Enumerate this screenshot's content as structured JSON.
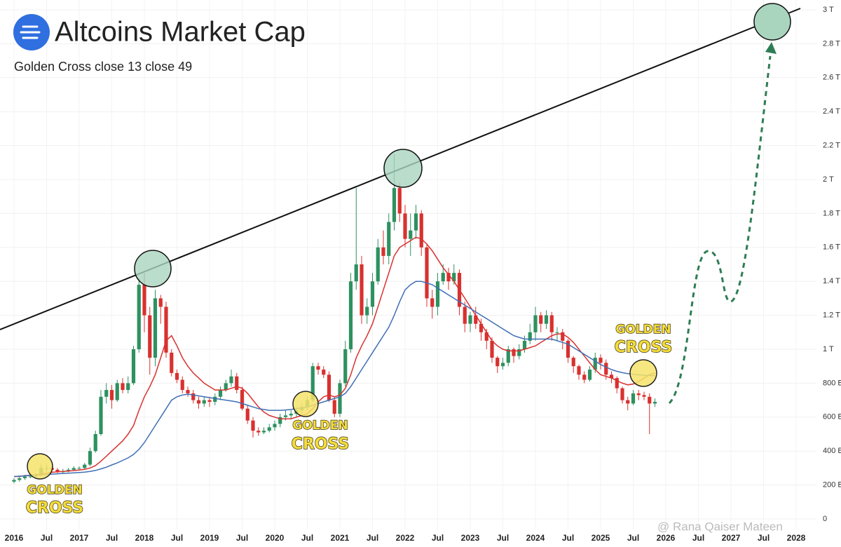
{
  "chart_data": {
    "type": "candlestick",
    "title": "Altcoins Market Cap",
    "subtitle": "Golden Cross close 13 close 49",
    "watermark": "@ Rana Qaiser Mateen",
    "annotations": [
      {
        "lines": [
          "GOLDEN",
          "CROSS"
        ]
      },
      {
        "lines": [
          "GOLDEN",
          "CROSS"
        ]
      },
      {
        "lines": [
          "GOLDEN",
          "CROSS"
        ]
      }
    ],
    "up_color": "#2e9160",
    "down_color": "#d8312f",
    "grid": true,
    "ylim": [
      0,
      3000
    ],
    "yticks": [
      0,
      {
        "value": 200,
        "label": "200 B"
      },
      {
        "value": 400,
        "label": "400 B"
      },
      {
        "value": 600,
        "label": "600 B"
      },
      {
        "value": 800,
        "label": "800 B"
      },
      {
        "value": 1000,
        "label": "1 T"
      },
      {
        "value": 1200,
        "label": "1.2 T"
      },
      {
        "value": 1400,
        "label": "1.4 T"
      },
      {
        "value": 1600,
        "label": "1.6 T"
      },
      {
        "value": 1800,
        "label": "1.8 T"
      },
      {
        "value": 2000,
        "label": "2 T"
      },
      {
        "value": 2200,
        "label": "2.2 T"
      },
      {
        "value": 2400,
        "label": "2.4 T"
      },
      {
        "value": 2600,
        "label": "2.6 T"
      },
      {
        "value": 2800,
        "label": "2.8 T"
      },
      {
        "value": 3000,
        "label": "3 T"
      }
    ],
    "categories": [
      "2016",
      null,
      null,
      null,
      null,
      null,
      "Jul",
      null,
      null,
      null,
      null,
      null,
      "2017",
      null,
      null,
      null,
      null,
      null,
      "Jul",
      null,
      null,
      null,
      null,
      null,
      "2018",
      null,
      null,
      null,
      null,
      null,
      "Jul",
      null,
      null,
      null,
      null,
      null,
      "2019",
      null,
      null,
      null,
      null,
      null,
      "Jul",
      null,
      null,
      null,
      null,
      null,
      "2020",
      null,
      null,
      null,
      null,
      null,
      "Jul",
      null,
      null,
      null,
      null,
      null,
      "2021",
      null,
      null,
      null,
      null,
      null,
      "Jul",
      null,
      null,
      null,
      null,
      null,
      "2022",
      null,
      null,
      null,
      null,
      null,
      "Jul",
      null,
      null,
      null,
      null,
      null,
      "2023",
      null,
      null,
      null,
      null,
      null,
      "Jul",
      null,
      null,
      null,
      null,
      null,
      "2024",
      null,
      null,
      null,
      null,
      null,
      "Jul",
      null,
      null,
      null,
      null,
      null,
      "2025",
      null,
      null,
      null,
      null,
      null,
      "Jul",
      null,
      null,
      null,
      null,
      null,
      "2026",
      null,
      null,
      null,
      null,
      null,
      "Jul",
      null,
      null,
      null,
      null,
      null,
      "2027",
      null,
      null,
      null,
      null,
      null,
      "Jul",
      null,
      null,
      null,
      null,
      null,
      "2028",
      null,
      null
    ],
    "open": [
      220,
      230,
      240,
      250,
      250,
      260,
      300,
      300,
      290,
      280,
      280,
      290,
      300,
      300,
      320,
      400,
      500,
      720,
      760,
      700,
      800,
      760,
      800,
      1000,
      1380,
      1200,
      950,
      1300,
      1250,
      980,
      860,
      820,
      760,
      740,
      700,
      680,
      700,
      690,
      720,
      760,
      800,
      840,
      760,
      650,
      580,
      520,
      510,
      520,
      540,
      560,
      600,
      610,
      620,
      640,
      660,
      700,
      900,
      880,
      850,
      700,
      620,
      800,
      1000,
      1400,
      1500,
      1200,
      1250,
      1400,
      1600,
      1550,
      1750,
      1950,
      1800,
      1650,
      1700,
      1800,
      1600,
      1300,
      1250,
      1400,
      1450,
      1400,
      1450,
      1250,
      1150,
      1200,
      1150,
      1100,
      1050,
      950,
      900,
      920,
      1000,
      960,
      1000,
      1050,
      1100,
      1200,
      1150,
      1200,
      1100,
      1100,
      1050,
      950,
      900,
      850,
      820,
      880,
      950,
      920,
      850,
      830,
      770,
      700,
      680,
      740,
      730,
      720,
      680,
      null,
      null,
      null,
      null,
      null,
      null,
      null,
      null,
      null,
      null,
      null,
      null,
      null,
      null,
      null,
      null,
      null,
      null,
      null,
      null,
      null,
      null,
      null,
      null,
      null,
      null,
      null,
      null
    ],
    "high": [
      240,
      250,
      260,
      265,
      270,
      320,
      320,
      310,
      300,
      295,
      300,
      310,
      310,
      330,
      420,
      520,
      760,
      800,
      790,
      820,
      830,
      840,
      1020,
      1420,
      1450,
      1250,
      1350,
      1320,
      1280,
      1000,
      880,
      840,
      780,
      760,
      720,
      720,
      720,
      740,
      780,
      820,
      880,
      860,
      780,
      670,
      600,
      540,
      540,
      560,
      580,
      620,
      640,
      640,
      660,
      680,
      720,
      920,
      920,
      900,
      870,
      720,
      820,
      1050,
      1450,
      1950,
      1550,
      1300,
      1450,
      1650,
      1700,
      1800,
      2150,
      1980,
      1850,
      1800,
      1850,
      1820,
      1620,
      1350,
      1450,
      1500,
      1480,
      1500,
      1470,
      1280,
      1220,
      1250,
      1180,
      1120,
      1070,
      960,
      950,
      1020,
      1010,
      1030,
      1080,
      1150,
      1250,
      1220,
      1230,
      1220,
      1130,
      1120,
      1060,
      960,
      910,
      870,
      900,
      980,
      970,
      940,
      870,
      840,
      780,
      720,
      760,
      760,
      750,
      740,
      710,
      null,
      null,
      null,
      null,
      null,
      null,
      null,
      null,
      null,
      null,
      null,
      null,
      null,
      null,
      null,
      null,
      null,
      null,
      null,
      null,
      null,
      null,
      null,
      null,
      null,
      null,
      null,
      null
    ],
    "low": [
      210,
      220,
      230,
      240,
      240,
      250,
      280,
      280,
      270,
      270,
      275,
      285,
      290,
      295,
      310,
      390,
      490,
      680,
      650,
      690,
      740,
      740,
      790,
      980,
      1100,
      850,
      900,
      1150,
      950,
      840,
      800,
      740,
      720,
      680,
      650,
      660,
      660,
      670,
      700,
      750,
      780,
      740,
      640,
      560,
      480,
      490,
      500,
      510,
      520,
      540,
      580,
      590,
      600,
      620,
      640,
      690,
      850,
      830,
      690,
      600,
      600,
      780,
      980,
      1350,
      1150,
      1150,
      1200,
      1380,
      1500,
      1500,
      1700,
      1750,
      1600,
      1550,
      1650,
      1550,
      1250,
      1180,
      1200,
      1380,
      1350,
      1380,
      1200,
      1100,
      1100,
      1120,
      1050,
      1000,
      920,
      860,
      880,
      900,
      920,
      940,
      980,
      1030,
      1050,
      1100,
      1120,
      1050,
      1050,
      1000,
      920,
      860,
      820,
      800,
      810,
      860,
      880,
      820,
      800,
      740,
      680,
      640,
      670,
      700,
      700,
      500,
      660,
      null,
      null,
      null,
      null,
      null,
      null,
      null,
      null,
      null,
      null,
      null,
      null,
      null,
      null,
      null,
      null,
      null,
      null,
      null,
      null,
      null,
      null,
      null,
      null,
      null,
      null,
      null,
      null
    ],
    "close": [
      230,
      240,
      250,
      250,
      260,
      300,
      300,
      290,
      280,
      280,
      290,
      300,
      300,
      320,
      400,
      500,
      720,
      760,
      700,
      800,
      760,
      800,
      1000,
      1380,
      1200,
      950,
      1300,
      1250,
      980,
      860,
      820,
      760,
      740,
      700,
      680,
      700,
      690,
      720,
      760,
      800,
      840,
      760,
      650,
      580,
      520,
      510,
      520,
      540,
      560,
      600,
      610,
      620,
      640,
      660,
      700,
      900,
      880,
      850,
      700,
      620,
      800,
      1000,
      1400,
      1500,
      1200,
      1250,
      1400,
      1600,
      1550,
      1750,
      1950,
      1800,
      1650,
      1700,
      1800,
      1600,
      1300,
      1250,
      1400,
      1450,
      1400,
      1450,
      1250,
      1150,
      1200,
      1150,
      1100,
      1050,
      950,
      900,
      920,
      1000,
      960,
      1000,
      1050,
      1100,
      1200,
      1150,
      1200,
      1100,
      1100,
      1050,
      950,
      900,
      850,
      820,
      880,
      950,
      920,
      850,
      830,
      770,
      700,
      680,
      740,
      730,
      720,
      680,
      690,
      null,
      null,
      null,
      null,
      null,
      null,
      null,
      null,
      null,
      null,
      null,
      null,
      null,
      null,
      null,
      null,
      null,
      null,
      null,
      null,
      null,
      null,
      null,
      null,
      null,
      null,
      null,
      null
    ],
    "lines": [
      {
        "color": "#d8312f",
        "values": [
          250,
          250,
          255,
          258,
          260,
          265,
          270,
          275,
          278,
          280,
          282,
          285,
          288,
          292,
          300,
          315,
          340,
          370,
          400,
          430,
          460,
          500,
          550,
          640,
          720,
          780,
          850,
          950,
          1050,
          1080,
          1020,
          950,
          900,
          860,
          830,
          800,
          780,
          760,
          760,
          760,
          770,
          780,
          770,
          740,
          700,
          660,
          630,
          610,
          600,
          590,
          590,
          590,
          600,
          610,
          620,
          650,
          690,
          720,
          730,
          720,
          730,
          770,
          850,
          950,
          1020,
          1080,
          1150,
          1250,
          1350,
          1450,
          1550,
          1600,
          1620,
          1640,
          1660,
          1650,
          1620,
          1580,
          1530,
          1480,
          1440,
          1400,
          1350,
          1300,
          1250,
          1200,
          1150,
          1100,
          1050,
          1020,
          1000,
          990,
          990,
          990,
          1000,
          1010,
          1020,
          1040,
          1060,
          1080,
          1090,
          1090,
          1070,
          1040,
          1000,
          960,
          920,
          880,
          850,
          840,
          830,
          815,
          800,
          790,
          795,
          810,
          830,
          850,
          860,
          null,
          null,
          null,
          null,
          null,
          null,
          null,
          null,
          null,
          null,
          null,
          null,
          null,
          null,
          null,
          null,
          null,
          null,
          null,
          null,
          null,
          null,
          null,
          null,
          null,
          null,
          null,
          null
        ]
      },
      {
        "color": "#3f6fb5",
        "values": [
          250,
          252,
          254,
          256,
          258,
          260,
          262,
          264,
          266,
          268,
          270,
          272,
          274,
          276,
          280,
          286,
          295,
          305,
          318,
          330,
          345,
          360,
          380,
          410,
          450,
          500,
          550,
          600,
          650,
          700,
          720,
          730,
          735,
          730,
          725,
          720,
          715,
          710,
          705,
          700,
          695,
          690,
          680,
          670,
          660,
          650,
          645,
          640,
          640,
          640,
          642,
          645,
          650,
          655,
          660,
          670,
          680,
          690,
          700,
          710,
          720,
          740,
          780,
          830,
          880,
          930,
          980,
          1030,
          1080,
          1130,
          1200,
          1280,
          1350,
          1380,
          1400,
          1400,
          1390,
          1380,
          1360,
          1340,
          1320,
          1300,
          1280,
          1260,
          1240,
          1220,
          1200,
          1180,
          1160,
          1140,
          1120,
          1100,
          1080,
          1070,
          1060,
          1060,
          1060,
          1060,
          1060,
          1060,
          1050,
          1040,
          1030,
          1010,
          990,
          970,
          950,
          930,
          910,
          895,
          880,
          870,
          862,
          856,
          852,
          849,
          847,
          845,
          844,
          null,
          null,
          null,
          null,
          null,
          null,
          null,
          null,
          null,
          null,
          null,
          null,
          null,
          null,
          null,
          null,
          null,
          null,
          null,
          null,
          null,
          null,
          null,
          null,
          null,
          null,
          null,
          null
        ]
      }
    ]
  }
}
